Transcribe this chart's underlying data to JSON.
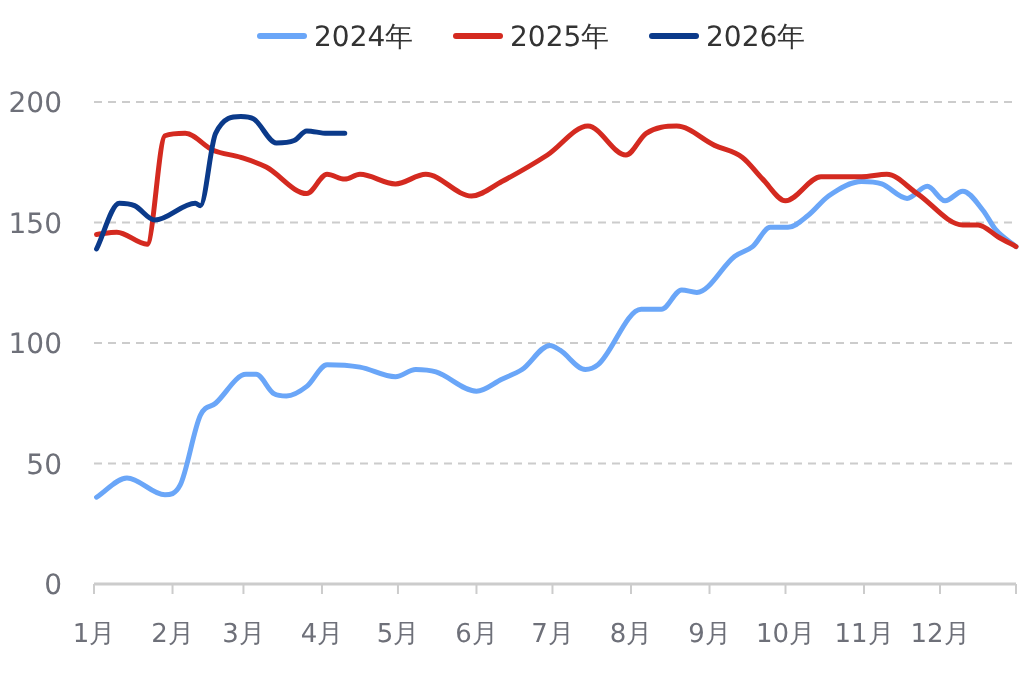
{
  "chart_data": {
    "type": "line",
    "xlim": [
      "--01-01",
      "--12-31"
    ],
    "xticks": [
      {
        "value": "--01-01",
        "label": "1月"
      },
      {
        "value": "--02-01",
        "label": "2月"
      },
      {
        "value": "--03-01",
        "label": "3月"
      },
      {
        "value": "--04-01",
        "label": "4月"
      },
      {
        "value": "--05-01",
        "label": "5月"
      },
      {
        "value": "--06-01",
        "label": "6月"
      },
      {
        "value": "--07-01",
        "label": "7月"
      },
      {
        "value": "--08-01",
        "label": "8月"
      },
      {
        "value": "--09-01",
        "label": "9月"
      },
      {
        "value": "--10-01",
        "label": "10月"
      },
      {
        "value": "--11-01",
        "label": "11月"
      },
      {
        "value": "--12-01",
        "label": "12月"
      }
    ],
    "ylim": [
      0,
      200
    ],
    "yticks": [
      0,
      50,
      100,
      150,
      200
    ],
    "grid": "y",
    "legend": "top",
    "marker": "none",
    "line_style": "solid",
    "series": [
      {
        "name": "2024年",
        "color": "#6aa6f8",
        "x": [
          "--01-02",
          "--01-14",
          "--01-29",
          "--02-04",
          "--02-12",
          "--02-18",
          "--03-02",
          "--03-06",
          "--03-13",
          "--03-18",
          "--03-26",
          "--04-03",
          "--04-16",
          "--04-30",
          "--05-08",
          "--05-16",
          "--06-01",
          "--06-11",
          "--06-19",
          "--06-30",
          "--07-04",
          "--07-14",
          "--07-19",
          "--08-05",
          "--08-13",
          "--08-21",
          "--08-27",
          "--09-11",
          "--09-18",
          "--09-25",
          "--10-02",
          "--10-10",
          "--10-18",
          "--10-31",
          "--11-08",
          "--11-18",
          "--11-26",
          "--12-03",
          "--12-10",
          "--12-18",
          "--12-23",
          "--12-31"
        ],
        "values": [
          36,
          44,
          37,
          41,
          70,
          75,
          87,
          87,
          79,
          78,
          82,
          91,
          90,
          86,
          89,
          88,
          80,
          85,
          89,
          99,
          97,
          89,
          91,
          114,
          114,
          122,
          121,
          136,
          140,
          148,
          148,
          153,
          161,
          167,
          166,
          160,
          165,
          159,
          163,
          155,
          147,
          140
        ]
      },
      {
        "name": "2025年",
        "color": "#d42a20",
        "x": [
          "--01-02",
          "--01-10",
          "--01-22",
          "--01-29",
          "--02-06",
          "--02-17",
          "--02-28",
          "--03-10",
          "--03-26",
          "--04-03",
          "--04-10",
          "--04-16",
          "--04-30",
          "--05-12",
          "--05-30",
          "--06-11",
          "--06-29",
          "--07-15",
          "--07-30",
          "--08-07",
          "--08-19",
          "--09-03",
          "--09-14",
          "--09-22",
          "--10-01",
          "--10-15",
          "--10-31",
          "--11-10",
          "--11-22",
          "--12-10",
          "--12-16",
          "--12-24",
          "--12-31"
        ],
        "values": [
          145,
          146,
          141,
          186,
          187,
          180,
          177,
          173,
          162,
          170,
          168,
          170,
          166,
          170,
          161,
          167,
          178,
          190,
          178,
          187,
          190,
          182,
          177,
          168,
          159,
          169,
          169,
          170,
          162,
          149,
          149,
          144,
          140
        ]
      },
      {
        "name": "2026年",
        "color": "#0b3a8a",
        "x": [
          "--01-02",
          "--01-11",
          "--01-17",
          "--01-25",
          "--02-10",
          "--02-12",
          "--02-18",
          "--02-28",
          "--03-05",
          "--03-14",
          "--03-21",
          "--03-26",
          "--04-03",
          "--04-10"
        ],
        "values": [
          139,
          158,
          157,
          151,
          158,
          157,
          187,
          194,
          193,
          183,
          184,
          188,
          187,
          187
        ]
      }
    ]
  }
}
